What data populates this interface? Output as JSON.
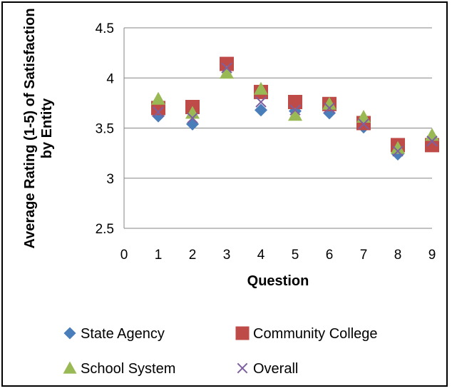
{
  "chart_data": {
    "type": "scatter",
    "title": "",
    "xlabel": "Question",
    "ylabel": "Average Rating (1-5) of Satisfaction by Entity",
    "xlim": [
      0,
      9
    ],
    "ylim": [
      2.5,
      4.5
    ],
    "x_ticks": [
      "0",
      "1",
      "2",
      "3",
      "4",
      "5",
      "6",
      "7",
      "8",
      "9"
    ],
    "y_ticks": [
      "2.5",
      "3",
      "3.5",
      "4",
      "4.5"
    ],
    "grid": "horizontal",
    "legend_position": "bottom",
    "series": [
      {
        "name": "State Agency",
        "marker": "diamond",
        "color": "#4a7ebb",
        "x": [
          1,
          2,
          3,
          4,
          5,
          6,
          7,
          8,
          9
        ],
        "y": [
          3.62,
          3.54,
          4.12,
          3.68,
          3.67,
          3.65,
          3.51,
          3.24,
          3.35
        ]
      },
      {
        "name": "Community College",
        "marker": "square",
        "color": "#be4b48",
        "x": [
          1,
          2,
          3,
          4,
          5,
          6,
          7,
          8,
          9
        ],
        "y": [
          3.7,
          3.71,
          4.14,
          3.86,
          3.76,
          3.74,
          3.55,
          3.33,
          3.33
        ]
      },
      {
        "name": "School System",
        "marker": "triangle",
        "color": "#98b954",
        "x": [
          1,
          2,
          3,
          4,
          5,
          6,
          7,
          8,
          9
        ],
        "y": [
          3.79,
          3.65,
          4.05,
          3.89,
          3.63,
          3.74,
          3.61,
          3.3,
          3.43
        ]
      },
      {
        "name": "Overall",
        "marker": "x",
        "color": "#7d60a0",
        "x": [
          1,
          2,
          3,
          4,
          5,
          6,
          7,
          8,
          9
        ],
        "y": [
          3.66,
          3.6,
          4.1,
          3.76,
          3.68,
          3.7,
          3.54,
          3.27,
          3.37
        ]
      }
    ]
  }
}
